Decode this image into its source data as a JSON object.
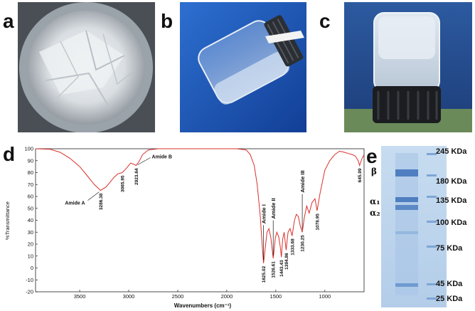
{
  "panels": {
    "a": "a",
    "b": "b",
    "c": "c",
    "d": "d",
    "e": "e"
  },
  "chart_data": [
    {
      "type": "line",
      "xlabel": "Wavenumbers (cm⁻¹)",
      "ylabel": "%Transmittance",
      "xlim": [
        3950,
        600
      ],
      "ylim": [
        -20,
        100
      ],
      "xticks": [
        "3500",
        "3000",
        "2500",
        "2000",
        "1500",
        "1000"
      ],
      "yticks": [
        "100",
        "90",
        "80",
        "70",
        "60",
        "50",
        "40",
        "30",
        "20",
        "10",
        "0",
        "-10",
        "-20"
      ],
      "grid": false,
      "line_color": "#d9302b",
      "series": [
        {
          "x": [
            3950,
            3800,
            3700,
            3600,
            3500,
            3420,
            3350,
            3286.38,
            3230,
            3150,
            3110,
            3065.95,
            3020,
            2980,
            2950,
            2923.64,
            2890,
            2860,
            2800,
            2700,
            2500,
            2300,
            2100,
            1900,
            1800,
            1760,
            1720,
            1690,
            1660,
            1640,
            1625.02,
            1610,
            1590,
            1570,
            1550,
            1526.61,
            1505,
            1490,
            1470,
            1455,
            1443.43,
            1430,
            1415,
            1394.86,
            1375,
            1355,
            1333.68,
            1310,
            1290,
            1270,
            1250,
            1230.25,
            1210,
            1185,
            1160,
            1130,
            1100,
            1078.95,
            1050,
            1000,
            950,
            900,
            850,
            800,
            760,
            720,
            690,
            660,
            645.99,
            620,
            600
          ],
          "y": [
            100,
            99.5,
            97,
            92,
            85,
            77,
            70,
            65,
            68,
            76,
            79,
            80,
            84,
            88,
            87,
            86,
            90,
            95,
            99,
            100,
            100,
            100,
            100,
            100,
            99,
            95,
            86,
            70,
            45,
            20,
            4,
            15,
            30,
            33,
            25,
            8,
            25,
            30,
            26,
            18,
            9,
            24,
            30,
            15,
            30,
            33,
            27,
            40,
            45,
            43,
            35,
            30,
            42,
            52,
            46,
            55,
            58,
            48,
            62,
            82,
            90,
            95,
            98,
            97,
            96,
            95,
            94,
            90,
            86,
            92,
            95
          ]
        }
      ],
      "data_labels": [
        {
          "x": 3286.38,
          "y": 65,
          "text": "3286.38"
        },
        {
          "x": 3065.95,
          "y": 80,
          "text": "3065.95"
        },
        {
          "x": 2923.64,
          "y": 86,
          "text": "2923.64"
        },
        {
          "x": 1625.02,
          "y": 4,
          "text": "1625.02"
        },
        {
          "x": 1526.61,
          "y": 8,
          "text": "1526.61"
        },
        {
          "x": 1443.43,
          "y": 9,
          "text": "1443.43"
        },
        {
          "x": 1394.86,
          "y": 15,
          "text": "1394.86"
        },
        {
          "x": 1333.68,
          "y": 27,
          "text": "1333.68"
        },
        {
          "x": 1230.25,
          "y": 30,
          "text": "1230.25"
        },
        {
          "x": 1078.95,
          "y": 48,
          "text": "1078.95"
        },
        {
          "x": 645.99,
          "y": 86,
          "text": "645.99"
        }
      ],
      "annotations": [
        {
          "text": "Amide A",
          "orientation": "horizontal",
          "x": 3286.38,
          "y": 65
        },
        {
          "text": "Amide B",
          "orientation": "horizontal",
          "x": 2923.64,
          "y": 86
        },
        {
          "text": "Amide I",
          "orientation": "vertical",
          "x": 1625.02,
          "y": 4
        },
        {
          "text": "Amide II",
          "orientation": "vertical",
          "x": 1526.61,
          "y": 8
        },
        {
          "text": "Amide III",
          "orientation": "vertical",
          "x": 1230.25,
          "y": 30
        }
      ]
    }
  ],
  "gel": {
    "markers": [
      "245 KDa",
      "180 KDa",
      "135 KDa",
      "100 KDa",
      "75 KDa",
      "45 KDa",
      "25 KDa"
    ],
    "bands": {
      "beta": "β",
      "alpha1": "α₁",
      "alpha2": "α₂"
    }
  },
  "colors": {
    "ftir_line": "#d9302b",
    "gel_background": "#b9d3ec",
    "gel_band": "#4f7fc0",
    "bottle_bg_blue": "#1f4fa8",
    "bottle_bg_c": "#2a4e8e"
  }
}
